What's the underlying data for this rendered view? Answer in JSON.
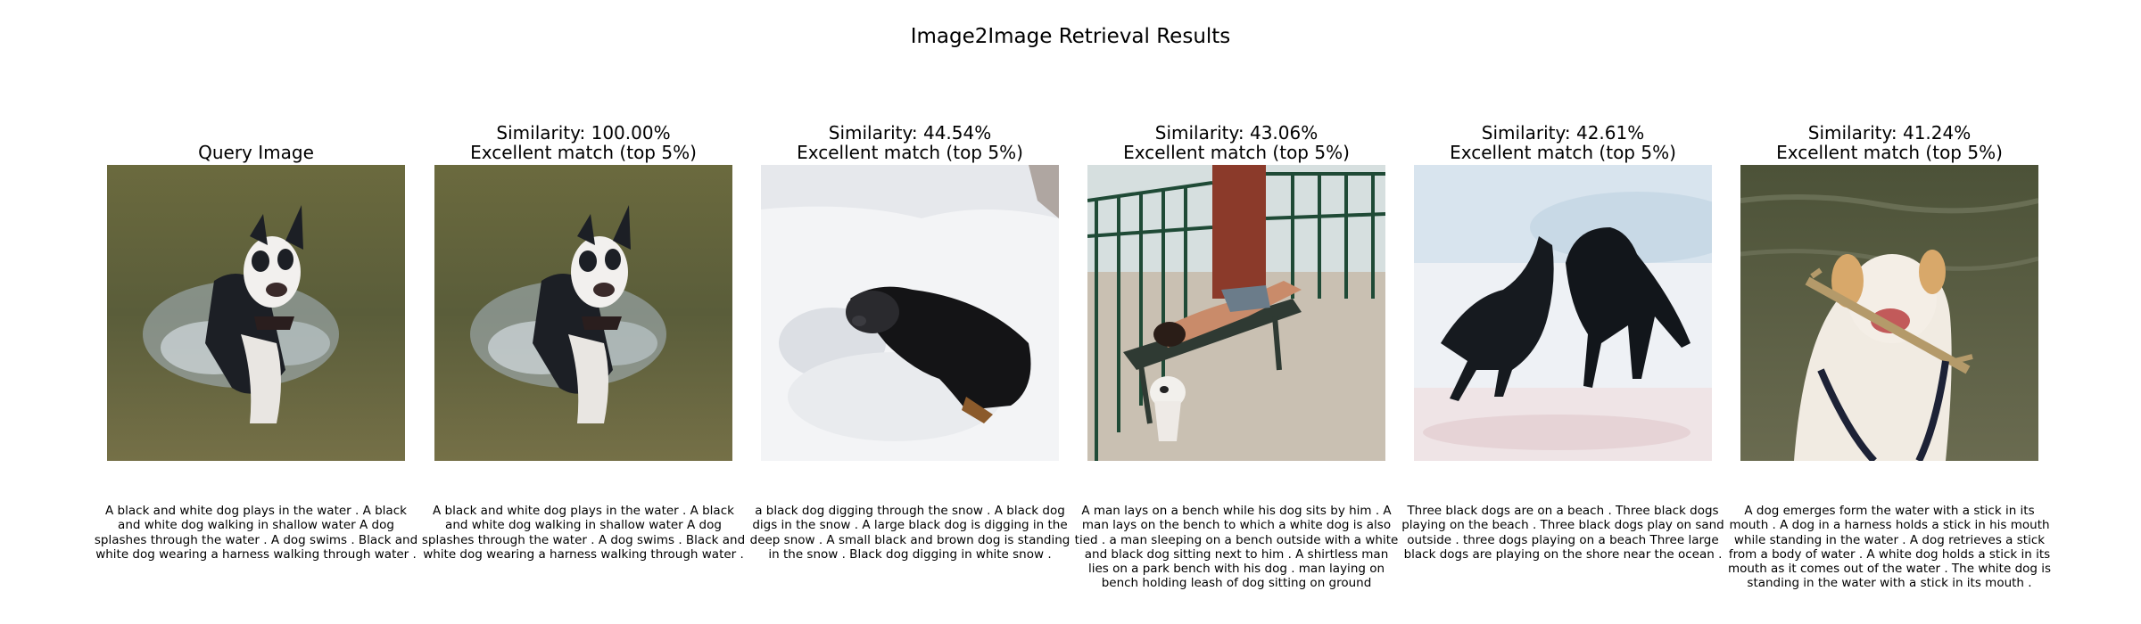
{
  "figure_title": "Image2Image Retrieval Results",
  "panels": [
    {
      "title_line1": "",
      "title_line2": "Query Image",
      "caption": "A black and white dog plays in the water . A black and white dog walking in shallow water A dog splashes through the water . A dog swims . Black and white dog wearing a harness walking through water .",
      "image_name": "dog-in-water-image"
    },
    {
      "title_line1": "Similarity: 100.00%",
      "title_line2": "Excellent match (top 5%)",
      "caption": "A black and white dog plays in the water . A black and white dog walking in shallow water A dog splashes through the water . A dog swims . Black and white dog wearing a harness walking through water .",
      "image_name": "dog-in-water-image"
    },
    {
      "title_line1": "Similarity: 44.54%",
      "title_line2": "Excellent match (top 5%)",
      "caption": "a black dog digging through the snow . A black dog digs in the snow . A large black dog is digging in the deep snow . A small black and brown dog is standing in the snow . Black dog digging in white snow .",
      "image_name": "dog-in-snow-image"
    },
    {
      "title_line1": "Similarity: 43.06%",
      "title_line2": "Excellent match (top 5%)",
      "caption": "A man lays on a bench while his dog sits by him . A man lays on the bench to which a white dog is also tied . a man sleeping on a bench outside with a white and black dog sitting next to him . A shirtless man lies on a park bench with his dog . man laying on bench holding leash of dog sitting on ground",
      "image_name": "man-on-bench-image"
    },
    {
      "title_line1": "Similarity: 42.61%",
      "title_line2": "Excellent match (top 5%)",
      "caption": "Three black dogs are on a beach . Three black dogs playing on the beach . Three black dogs play on sand outside . three dogs playing on a beach Three large black dogs are playing on the shore near the ocean .",
      "image_name": "dogs-on-beach-image"
    },
    {
      "title_line1": "Similarity: 41.24%",
      "title_line2": "Excellent match (top 5%)",
      "caption": "A dog emerges form the water with a stick in its mouth . A dog in a harness holds a stick in his mouth while standing in the water . A dog retrieves a stick from a body of water . A white dog holds a stick in its mouth as it comes out of the water . The white dog is standing in the water with a stick in its mouth .",
      "image_name": "dog-with-stick-image"
    }
  ]
}
